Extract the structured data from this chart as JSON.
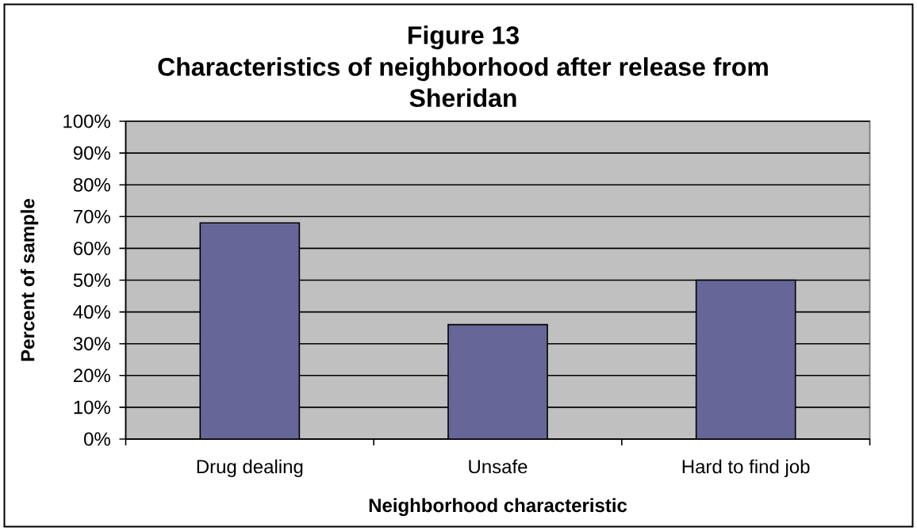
{
  "chart_data": {
    "type": "bar",
    "title": "Figure 13",
    "subtitle": "Characteristics of neighborhood after release from Sheridan",
    "xlabel": "Neighborhood characteristic",
    "ylabel": "Percent of sample",
    "categories": [
      "Drug dealing",
      "Unsafe",
      "Hard to find job"
    ],
    "values": [
      68,
      36,
      50
    ],
    "color": "#666699",
    "ylim": [
      0,
      100
    ],
    "yticks": [
      {
        "value": 0,
        "label": "0%"
      },
      {
        "value": 10,
        "label": "10%"
      },
      {
        "value": 20,
        "label": "20%"
      },
      {
        "value": 30,
        "label": "30%"
      },
      {
        "value": 40,
        "label": "40%"
      },
      {
        "value": 50,
        "label": "50%"
      },
      {
        "value": 60,
        "label": "60%"
      },
      {
        "value": 70,
        "label": "70%"
      },
      {
        "value": 80,
        "label": "80%"
      },
      {
        "value": 90,
        "label": "90%"
      },
      {
        "value": 100,
        "label": "100%"
      }
    ],
    "grid": "y"
  }
}
